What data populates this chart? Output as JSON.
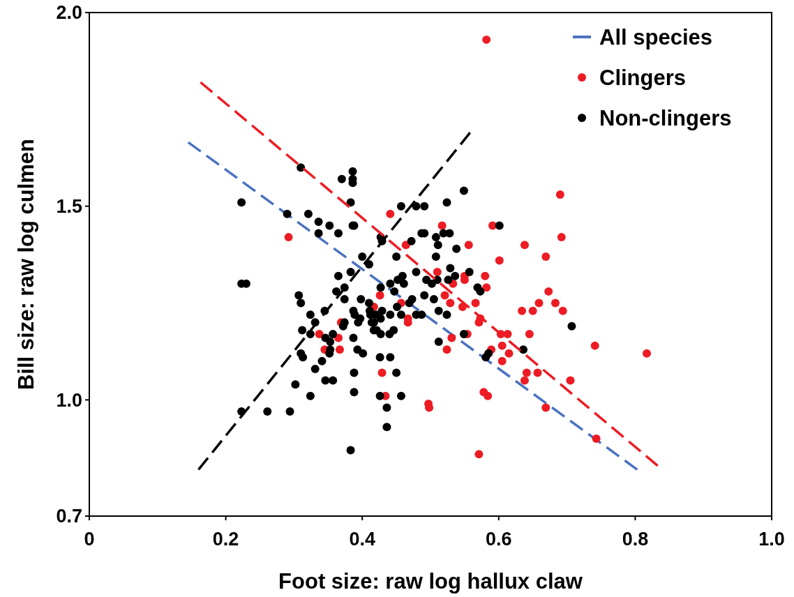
{
  "chart_data": {
    "type": "scatter",
    "xlabel": "Foot size: raw log hallux claw",
    "ylabel": "Bill size: raw log culmen",
    "xlim": [
      0,
      1.0
    ],
    "xticks": [
      {
        "value": 0,
        "label": "0"
      },
      0.2,
      0.4,
      0.6,
      0.8,
      {
        "value": 1.0,
        "label": "1.0"
      }
    ],
    "ylim": [
      0.7,
      2.0
    ],
    "yticks": [
      0.7,
      {
        "value": 1.0,
        "label": "1.0"
      },
      1.5,
      {
        "value": 2.0,
        "label": "2.0"
      }
    ],
    "grid": false,
    "legend": "top right",
    "marker": "circle",
    "series": [
      {
        "name": "All species",
        "type": "line",
        "line_style": "dashed",
        "marker": "none",
        "color": "#4a72c0",
        "x": [
          0.145,
          0.803
        ],
        "values": [
          1.665,
          0.82
        ]
      },
      {
        "name": "Clingers",
        "color": "#ed1c24",
        "x": [
          0.582,
          0.69,
          0.692,
          0.638,
          0.669,
          0.601,
          0.591,
          0.517,
          0.464,
          0.556,
          0.51,
          0.55,
          0.55,
          0.58,
          0.582,
          0.533,
          0.521,
          0.529,
          0.566,
          0.547,
          0.573,
          0.571,
          0.467,
          0.673,
          0.659,
          0.65,
          0.634,
          0.683,
          0.694,
          0.645,
          0.613,
          0.603,
          0.554,
          0.531,
          0.524,
          0.605,
          0.615,
          0.589,
          0.605,
          0.641,
          0.657,
          0.638,
          0.705,
          0.741,
          0.817,
          0.669,
          0.578,
          0.584,
          0.497,
          0.743,
          0.571,
          0.441,
          0.426,
          0.417,
          0.457,
          0.467,
          0.369,
          0.337,
          0.345,
          0.365,
          0.367,
          0.429,
          0.434,
          0.498,
          0.292
        ],
        "values": [
          1.93,
          1.53,
          1.42,
          1.4,
          1.37,
          1.36,
          1.45,
          1.45,
          1.4,
          1.4,
          1.33,
          1.32,
          1.31,
          1.32,
          1.29,
          1.3,
          1.27,
          1.25,
          1.25,
          1.24,
          1.21,
          1.2,
          1.21,
          1.28,
          1.25,
          1.23,
          1.23,
          1.25,
          1.23,
          1.17,
          1.17,
          1.17,
          1.17,
          1.16,
          1.13,
          1.14,
          1.12,
          1.13,
          1.1,
          1.07,
          1.07,
          1.05,
          1.05,
          1.14,
          1.12,
          0.98,
          1.02,
          1.01,
          0.99,
          0.9,
          0.86,
          1.48,
          1.27,
          1.24,
          1.25,
          1.2,
          1.2,
          1.17,
          1.13,
          1.16,
          1.13,
          1.07,
          1.01,
          0.98,
          1.42
        ]
      },
      {
        "name": "Non-clingers",
        "color": "#000000",
        "x": [
          0.31,
          0.223,
          0.29,
          0.321,
          0.223,
          0.23,
          0.307,
          0.31,
          0.324,
          0.312,
          0.324,
          0.31,
          0.313,
          0.302,
          0.324,
          0.223,
          0.261,
          0.294,
          0.37,
          0.386,
          0.386,
          0.386,
          0.383,
          0.336,
          0.336,
          0.352,
          0.365,
          0.386,
          0.388,
          0.457,
          0.479,
          0.491,
          0.427,
          0.429,
          0.472,
          0.487,
          0.491,
          0.508,
          0.511,
          0.45,
          0.508,
          0.4,
          0.41,
          0.365,
          0.383,
          0.374,
          0.362,
          0.374,
          0.398,
          0.41,
          0.427,
          0.441,
          0.447,
          0.452,
          0.459,
          0.461,
          0.479,
          0.494,
          0.502,
          0.505,
          0.491,
          0.469,
          0.473,
          0.451,
          0.441,
          0.429,
          0.427,
          0.42,
          0.417,
          0.411,
          0.387,
          0.389,
          0.397,
          0.394,
          0.387,
          0.374,
          0.372,
          0.345,
          0.331,
          0.346,
          0.357,
          0.353,
          0.353,
          0.352,
          0.341,
          0.331,
          0.393,
          0.401,
          0.412,
          0.414,
          0.417,
          0.421,
          0.427,
          0.44,
          0.446,
          0.457,
          0.479,
          0.487,
          0.512,
          0.426,
          0.441,
          0.45,
          0.388,
          0.346,
          0.357,
          0.388,
          0.426,
          0.457,
          0.436,
          0.436,
          0.383,
          0.512,
          0.524,
          0.549,
          0.601,
          0.519,
          0.528,
          0.538,
          0.51,
          0.526,
          0.529,
          0.536,
          0.557,
          0.524,
          0.549,
          0.569,
          0.573,
          0.581,
          0.585,
          0.636,
          0.707
        ],
        "values": [
          1.6,
          1.51,
          1.48,
          1.48,
          1.3,
          1.3,
          1.27,
          1.25,
          1.22,
          1.18,
          1.17,
          1.12,
          1.11,
          1.04,
          1.01,
          0.97,
          0.97,
          0.97,
          1.57,
          1.59,
          1.57,
          1.56,
          1.51,
          1.46,
          1.43,
          1.45,
          1.43,
          1.45,
          1.45,
          1.5,
          1.5,
          1.5,
          1.42,
          1.41,
          1.41,
          1.43,
          1.43,
          1.42,
          1.4,
          1.37,
          1.37,
          1.37,
          1.35,
          1.32,
          1.33,
          1.29,
          1.28,
          1.26,
          1.26,
          1.25,
          1.29,
          1.3,
          1.28,
          1.31,
          1.32,
          1.3,
          1.33,
          1.31,
          1.3,
          1.26,
          1.27,
          1.25,
          1.26,
          1.24,
          1.22,
          1.23,
          1.21,
          1.22,
          1.2,
          1.23,
          1.23,
          1.22,
          1.21,
          1.2,
          1.16,
          1.2,
          1.19,
          1.23,
          1.2,
          1.16,
          1.17,
          1.15,
          1.13,
          1.12,
          1.1,
          1.08,
          1.13,
          1.12,
          1.22,
          1.2,
          1.18,
          1.18,
          1.17,
          1.17,
          1.18,
          1.22,
          1.22,
          1.22,
          1.23,
          1.11,
          1.11,
          1.07,
          1.07,
          1.05,
          1.05,
          1.02,
          1.01,
          1.01,
          0.98,
          0.93,
          0.87,
          1.15,
          1.51,
          1.54,
          1.45,
          1.43,
          1.43,
          1.39,
          1.31,
          1.31,
          1.34,
          1.32,
          1.33,
          1.22,
          1.17,
          1.29,
          1.28,
          1.11,
          1.12,
          1.13,
          1.19
        ]
      },
      {
        "type": "line",
        "line_style": "dashed",
        "marker": "none",
        "color": "#ed1c24",
        "x": [
          0.163,
          0.833
        ],
        "values": [
          1.82,
          0.83
        ]
      },
      {
        "type": "line",
        "line_style": "dashed",
        "marker": "none",
        "color": "#000000",
        "x": [
          0.16,
          0.558
        ],
        "values": [
          0.82,
          1.69
        ]
      }
    ]
  }
}
